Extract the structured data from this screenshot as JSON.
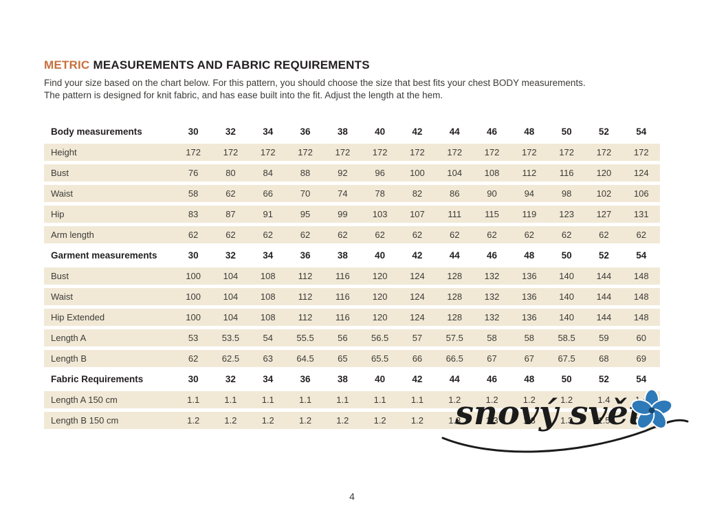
{
  "page": {
    "title_accent": "METRIC",
    "title_rest": "MEASUREMENTS AND FABRIC REQUIREMENTS",
    "intro_line1": "Find your size based on the chart below. For this pattern, you should choose the size that best fits your chest BODY measurements.",
    "intro_line2": "The pattern is designed for knit fabric, and has ease built into the fit.  Adjust the length at the hem.",
    "page_number": "4"
  },
  "watermark": {
    "text": "snový svět",
    "flower_color": "#2e79b8",
    "flower_center_color": "#14476e",
    "line_color": "#1b1b1b"
  },
  "table": {
    "sizes": [
      "30",
      "32",
      "34",
      "36",
      "38",
      "40",
      "42",
      "44",
      "46",
      "48",
      "50",
      "52",
      "54"
    ],
    "sections": [
      {
        "header": "Body measurements",
        "rows": [
          {
            "label": "Height",
            "values": [
              "172",
              "172",
              "172",
              "172",
              "172",
              "172",
              "172",
              "172",
              "172",
              "172",
              "172",
              "172",
              "172"
            ]
          },
          {
            "label": "Bust",
            "values": [
              "76",
              "80",
              "84",
              "88",
              "92",
              "96",
              "100",
              "104",
              "108",
              "112",
              "116",
              "120",
              "124"
            ]
          },
          {
            "label": "Waist",
            "values": [
              "58",
              "62",
              "66",
              "70",
              "74",
              "78",
              "82",
              "86",
              "90",
              "94",
              "98",
              "102",
              "106"
            ]
          },
          {
            "label": "Hip",
            "values": [
              "83",
              "87",
              "91",
              "95",
              "99",
              "103",
              "107",
              "111",
              "115",
              "119",
              "123",
              "127",
              "131"
            ]
          },
          {
            "label": "Arm length",
            "values": [
              "62",
              "62",
              "62",
              "62",
              "62",
              "62",
              "62",
              "62",
              "62",
              "62",
              "62",
              "62",
              "62"
            ]
          }
        ]
      },
      {
        "header": "Garment measurements",
        "rows": [
          {
            "label": "Bust",
            "values": [
              "100",
              "104",
              "108",
              "112",
              "116",
              "120",
              "124",
              "128",
              "132",
              "136",
              "140",
              "144",
              "148"
            ]
          },
          {
            "label": "Waist",
            "values": [
              "100",
              "104",
              "108",
              "112",
              "116",
              "120",
              "124",
              "128",
              "132",
              "136",
              "140",
              "144",
              "148"
            ]
          },
          {
            "label": "Hip Extended",
            "values": [
              "100",
              "104",
              "108",
              "112",
              "116",
              "120",
              "124",
              "128",
              "132",
              "136",
              "140",
              "144",
              "148"
            ]
          },
          {
            "label": "Length A",
            "values": [
              "53",
              "53.5",
              "54",
              "55.5",
              "56",
              "56.5",
              "57",
              "57.5",
              "58",
              "58",
              "58.5",
              "59",
              "60"
            ]
          },
          {
            "label": "Length B",
            "values": [
              "62",
              "62.5",
              "63",
              "64.5",
              "65",
              "65.5",
              "66",
              "66.5",
              "67",
              "67",
              "67.5",
              "68",
              "69"
            ]
          }
        ]
      },
      {
        "header": "Fabric Requirements",
        "rows": [
          {
            "label": "Length A 150 cm",
            "values": [
              "1.1",
              "1.1",
              "1.1",
              "1.1",
              "1.1",
              "1.1",
              "1.1",
              "1.2",
              "1.2",
              "1.2",
              "1.2",
              "1.4",
              "1.4"
            ]
          },
          {
            "label": "Length B 150 cm",
            "values": [
              "1.2",
              "1.2",
              "1.2",
              "1.2",
              "1.2",
              "1.2",
              "1.2",
              "1.3",
              "1.3",
              "1.3",
              "1.3",
              "1.5",
              "1.5"
            ]
          }
        ]
      }
    ]
  }
}
